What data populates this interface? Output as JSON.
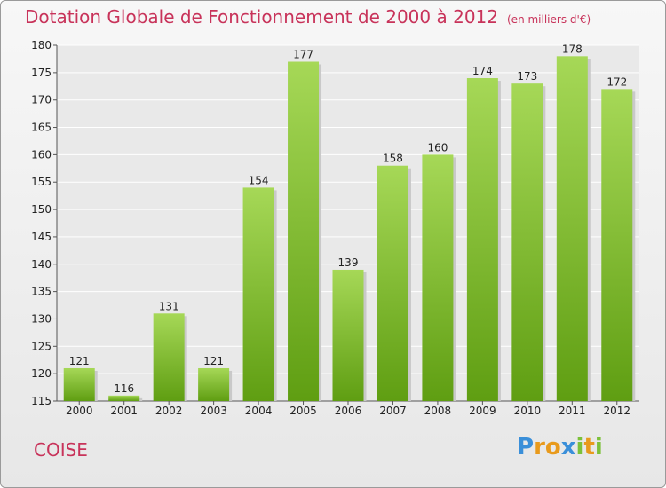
{
  "chart_data": {
    "type": "bar",
    "title": "Dotation Globale de Fonctionnement de 2000 à 2012",
    "unit": "(en milliers d'€)",
    "categories": [
      "2000",
      "2001",
      "2002",
      "2003",
      "2004",
      "2005",
      "2006",
      "2007",
      "2008",
      "2009",
      "2010",
      "2011",
      "2012"
    ],
    "values": [
      121,
      116,
      131,
      121,
      154,
      177,
      139,
      158,
      160,
      174,
      173,
      178,
      172
    ],
    "ylim": [
      115,
      180
    ],
    "yticks": [
      115,
      120,
      125,
      130,
      135,
      140,
      145,
      150,
      155,
      160,
      165,
      170,
      175,
      180
    ],
    "grid": true,
    "bar_color_light": "#a6d857",
    "bar_color_dark": "#5f9e12"
  },
  "commune": "COISE",
  "logo": {
    "letters": [
      "P",
      "r",
      "o",
      "x",
      "i",
      "t",
      "i"
    ],
    "colors": [
      "#3a8fd9",
      "#e89a1c",
      "#e89a1c",
      "#3a8fd9",
      "#7cc13a",
      "#e89a1c",
      "#7cc13a"
    ]
  }
}
